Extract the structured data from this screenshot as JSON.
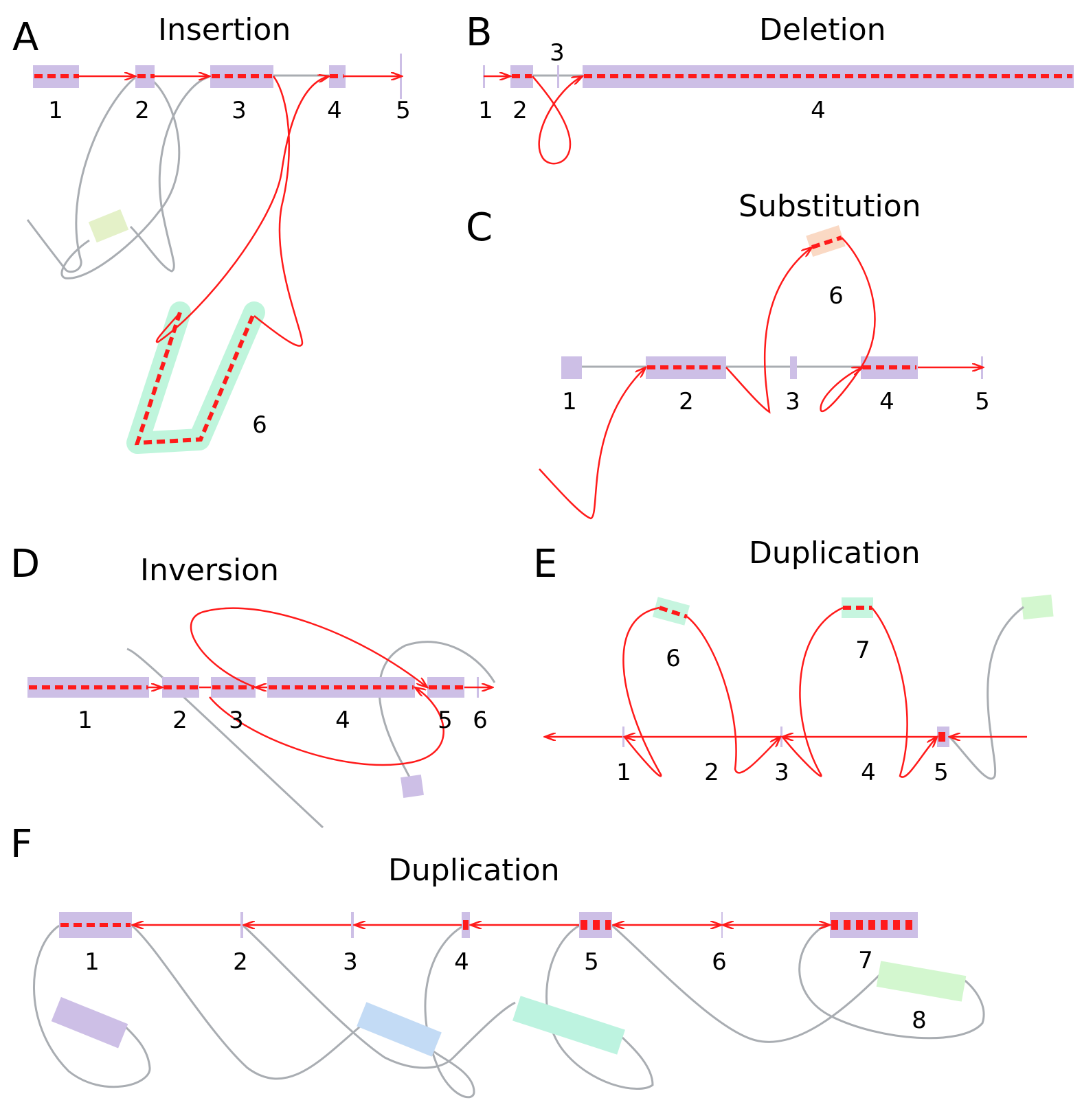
{
  "panels": {
    "A": {
      "letter": "A",
      "title": "Insertion",
      "labels": [
        "1",
        "2",
        "3",
        "4",
        "5",
        "6"
      ]
    },
    "B": {
      "letter": "B",
      "title": "Deletion",
      "labels": [
        "1",
        "2",
        "3",
        "4"
      ]
    },
    "C": {
      "letter": "C",
      "title": "Substitution",
      "labels": [
        "1",
        "2",
        "3",
        "4",
        "5",
        "6"
      ]
    },
    "D": {
      "letter": "D",
      "title": "Inversion",
      "labels": [
        "1",
        "2",
        "3",
        "4",
        "5",
        "6"
      ]
    },
    "E": {
      "letter": "E",
      "title": "Duplication",
      "labels": [
        "1",
        "2",
        "3",
        "4",
        "5",
        "6",
        "7"
      ]
    },
    "F": {
      "letter": "F",
      "title": "Duplication",
      "labels": [
        "1",
        "2",
        "3",
        "4",
        "5",
        "6",
        "7",
        "8"
      ]
    }
  },
  "colors": {
    "segment": "#cdbfe6",
    "path": "#ff1a1a",
    "edge": "#a9adb2"
  }
}
